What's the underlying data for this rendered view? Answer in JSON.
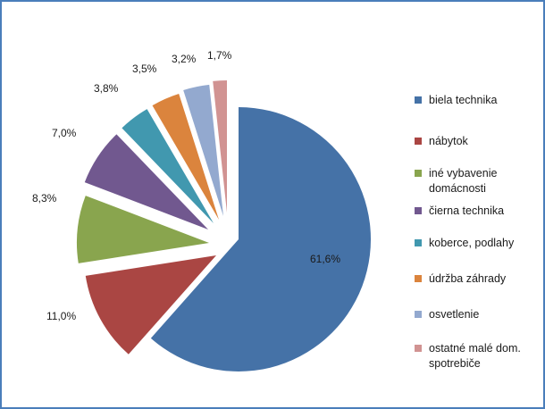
{
  "chart_data": {
    "type": "pie",
    "categories": [
      "biela technika",
      "nábytok",
      "iné vybavenie domácnosti",
      "čierna technika",
      "koberce, podlahy",
      "údržba záhrady",
      "osvetlenie",
      "ostatné malé dom. spotrebiče"
    ],
    "values": [
      61.6,
      11.0,
      8.3,
      7.0,
      3.8,
      3.5,
      3.2,
      1.7
    ],
    "data_labels": [
      "61,6%",
      "11,0%",
      "8,3%",
      "7,0%",
      "3,8%",
      "3,5%",
      "3,2%",
      "1,7%"
    ],
    "colors": [
      "#4572a7",
      "#aa4643",
      "#89a54e",
      "#71588f",
      "#4198af",
      "#db843d",
      "#93a9cf",
      "#d19392"
    ],
    "exploded": true,
    "legend_position": "right",
    "title": ""
  }
}
